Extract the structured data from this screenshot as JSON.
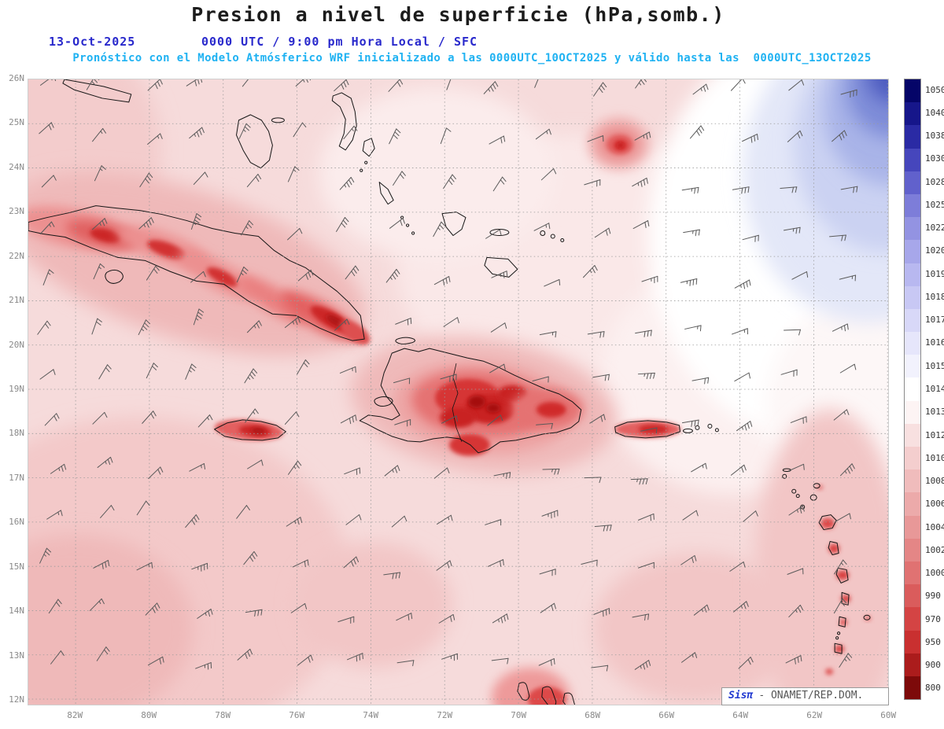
{
  "header": {
    "title": "Presion a nivel de superficie (hPa,somb.)",
    "date": "13-Oct-2025",
    "time_line": "0000 UTC / 9:00 pm Hora Local / SFC",
    "forecast_line": "Pronóstico con el Modelo Atmósferico WRF inicializado a las 0000UTC_10OCT2025 y válido hasta las  0000UTC_13OCT2025"
  },
  "map": {
    "lat_labels": [
      "26N",
      "25N",
      "24N",
      "23N",
      "22N",
      "21N",
      "20N",
      "19N",
      "18N",
      "17N",
      "16N",
      "15N",
      "14N",
      "13N",
      "12N"
    ],
    "lon_labels": [
      "82W",
      "80W",
      "78W",
      "76W",
      "74W",
      "72W",
      "70W",
      "68W",
      "66W",
      "64W",
      "62W",
      "60W"
    ],
    "watermark_brand": "Sisπ",
    "watermark_text": "- ONAMET/REP.DOM."
  },
  "colorbar": {
    "unit": "hPa",
    "levels": [
      "1050",
      "1040",
      "1038",
      "1030",
      "1028",
      "1025",
      "1022",
      "1020",
      "1019",
      "1018",
      "1017",
      "1016",
      "1015",
      "1014",
      "1013",
      "1012",
      "1010",
      "1008",
      "1006",
      "1004",
      "1002",
      "1000",
      "990",
      "970",
      "950",
      "900",
      "800"
    ],
    "colors": [
      "#050568",
      "#16168a",
      "#2a2aa4",
      "#4646bc",
      "#6161cc",
      "#7d7dd9",
      "#9393e2",
      "#a7a7ea",
      "#b8b8f0",
      "#c8c8f4",
      "#d8d8f8",
      "#e6e6fb",
      "#f2f2fd",
      "#ffffff",
      "#fdf4f4",
      "#f8e0e0",
      "#f4cece",
      "#f0bcbc",
      "#ecaaaa",
      "#e89898",
      "#e48686",
      "#e07272",
      "#da5c5c",
      "#d44444",
      "#c93030",
      "#ab1c1c",
      "#7d0a0a"
    ]
  },
  "chart_data": {
    "type": "heatmap",
    "title": "Presion a nivel de superficie (hPa,somb.)",
    "units": "hPa",
    "lon_range_deg_west": [
      83.3,
      60
    ],
    "lat_range_deg_north": [
      12,
      26
    ],
    "colorbar_levels": [
      1050,
      1040,
      1038,
      1030,
      1028,
      1025,
      1022,
      1020,
      1019,
      1018,
      1017,
      1016,
      1015,
      1014,
      1013,
      1012,
      1010,
      1008,
      1006,
      1004,
      1002,
      1000,
      990,
      970,
      950,
      900,
      800
    ],
    "field_summary": "Sea-level pressure near 1010-1013 hPa over most of the Caribbean basin; 1014-1020 hPa high-pressure ridge in the northeast corner; strong low (terrain-reduced) values shaded red over Cuba, Hispaniola, Jamaica, Puerto Rico, the Lesser Antilles and the ABC islands; closed low near 24.5N 69.5W; wind barbs show prevailing easterly trade flow"
  }
}
